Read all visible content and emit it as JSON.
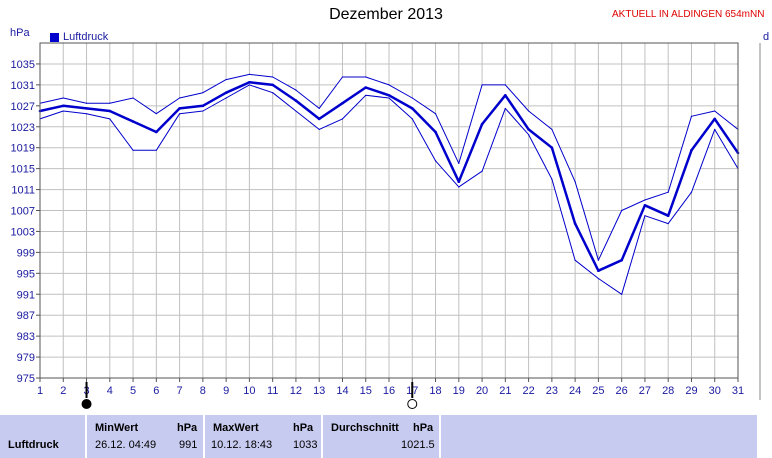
{
  "header": {
    "title": "Dezember 2013",
    "location": "AKTUELL IN ALDINGEN 654mNN",
    "unit": "hPa",
    "legend_label": "Luftdruck",
    "right_edge_letter": "d"
  },
  "stats": {
    "row_label": "Luftdruck",
    "min_header": "MinWert",
    "min_unit": "hPa",
    "min_time": "26.12.  04:49",
    "min_value": "991",
    "max_header": "MaxWert",
    "max_unit": "hPa",
    "max_time": "10.12.  18:43",
    "max_value": "1033",
    "avg_header": "Durchschnitt",
    "avg_unit": "hPa",
    "avg_value": "1021.5"
  },
  "colors": {
    "series": "#0000cc",
    "title_red": "#e00000",
    "axis_text": "#1a1aa0",
    "grid": "#c0c0c0",
    "stats_bg": "#c8cbf0"
  },
  "chart_data": {
    "type": "line",
    "title": "Dezember 2013",
    "ylabel": "hPa",
    "xlabel": "",
    "ylim": [
      975,
      1039
    ],
    "xlim": [
      1,
      31
    ],
    "yticks": [
      975,
      979,
      983,
      987,
      991,
      995,
      999,
      1003,
      1007,
      1011,
      1015,
      1019,
      1023,
      1027,
      1031,
      1035
    ],
    "xticks": [
      1,
      2,
      3,
      4,
      5,
      6,
      7,
      8,
      9,
      10,
      11,
      12,
      13,
      14,
      15,
      16,
      17,
      18,
      19,
      20,
      21,
      22,
      23,
      24,
      25,
      26,
      27,
      28,
      29,
      30,
      31
    ],
    "grid": true,
    "legend": "top-left",
    "moon_phases": [
      {
        "day": 3,
        "phase": "new-moon"
      },
      {
        "day": 17,
        "phase": "full-moon"
      }
    ],
    "x": [
      1,
      2,
      3,
      4,
      5,
      6,
      7,
      8,
      9,
      10,
      11,
      12,
      13,
      14,
      15,
      16,
      17,
      18,
      19,
      20,
      21,
      22,
      23,
      24,
      25,
      26,
      27,
      28,
      29,
      30,
      31
    ],
    "series": [
      {
        "name": "Luftdruck",
        "role": "mean",
        "values": [
          1026,
          1027,
          1026.5,
          1026,
          1024,
          1022,
          1026.5,
          1027,
          1029.5,
          1031.5,
          1031,
          1028,
          1024.5,
          1027.5,
          1030.5,
          1029,
          1026.5,
          1022,
          1012.5,
          1023.5,
          1029,
          1022.5,
          1019,
          1004.5,
          995.5,
          997.5,
          1008,
          1006,
          1018.5,
          1024.5,
          1018
        ]
      },
      {
        "role": "max",
        "values": [
          1027.5,
          1028.5,
          1027.5,
          1027.5,
          1028.5,
          1025.5,
          1028.5,
          1029.5,
          1032,
          1033,
          1032.5,
          1030,
          1026.5,
          1032.5,
          1032.5,
          1031,
          1028.5,
          1025.5,
          1016,
          1031,
          1031,
          1026,
          1022.5,
          1012.5,
          997.5,
          1007,
          1009,
          1010.5,
          1025,
          1026,
          1022.5
        ]
      },
      {
        "role": "min",
        "values": [
          1024.5,
          1026,
          1025.5,
          1024.5,
          1018.5,
          1018.5,
          1025.5,
          1026,
          1028.5,
          1031,
          1029.5,
          1026,
          1022.5,
          1024.5,
          1029,
          1028.5,
          1024.5,
          1016.5,
          1011.5,
          1014.5,
          1026.5,
          1021.5,
          1013,
          997.5,
          994,
          991,
          1006,
          1004.5,
          1010.5,
          1022.5,
          1015
        ]
      }
    ]
  }
}
